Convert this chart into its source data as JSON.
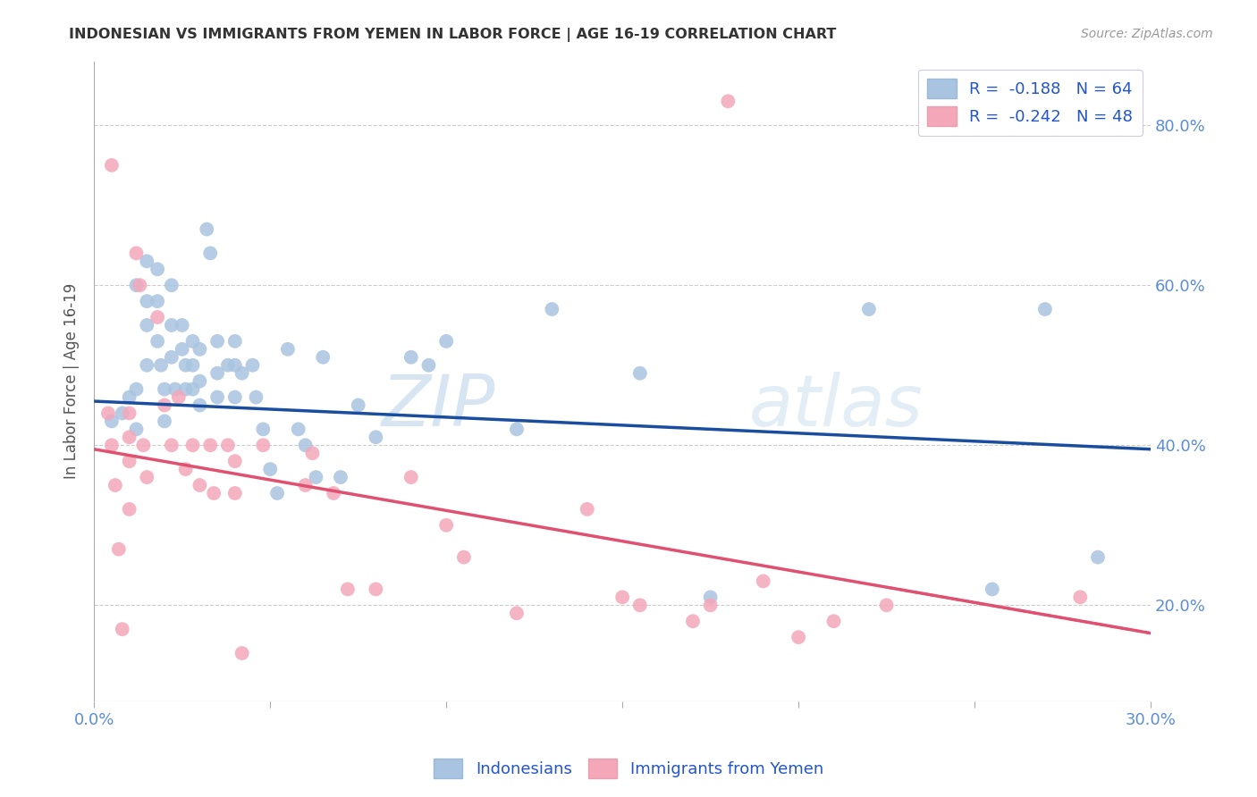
{
  "title": "INDONESIAN VS IMMIGRANTS FROM YEMEN IN LABOR FORCE | AGE 16-19 CORRELATION CHART",
  "source": "Source: ZipAtlas.com",
  "ylabel": "In Labor Force | Age 16-19",
  "xlim": [
    0.0,
    0.3
  ],
  "ylim": [
    0.08,
    0.88
  ],
  "xticks": [
    0.0,
    0.05,
    0.1,
    0.15,
    0.2,
    0.25,
    0.3
  ],
  "yticks": [
    0.2,
    0.4,
    0.6,
    0.8
  ],
  "ytick_labels": [
    "20.0%",
    "40.0%",
    "60.0%",
    "80.0%"
  ],
  "blue_R": -0.188,
  "blue_N": 64,
  "pink_R": -0.242,
  "pink_N": 48,
  "blue_color": "#a8c4e0",
  "pink_color": "#f4a7b9",
  "blue_line_color": "#1a4d9e",
  "pink_line_color": "#e05070",
  "watermark_zip": "ZIP",
  "watermark_atlas": "atlas",
  "blue_scatter_x": [
    0.005,
    0.008,
    0.01,
    0.012,
    0.012,
    0.012,
    0.015,
    0.015,
    0.015,
    0.015,
    0.018,
    0.018,
    0.018,
    0.019,
    0.02,
    0.02,
    0.022,
    0.022,
    0.022,
    0.023,
    0.025,
    0.025,
    0.026,
    0.026,
    0.028,
    0.028,
    0.028,
    0.03,
    0.03,
    0.03,
    0.032,
    0.033,
    0.035,
    0.035,
    0.035,
    0.038,
    0.04,
    0.04,
    0.04,
    0.042,
    0.045,
    0.046,
    0.048,
    0.05,
    0.052,
    0.055,
    0.058,
    0.06,
    0.063,
    0.065,
    0.07,
    0.075,
    0.08,
    0.09,
    0.095,
    0.1,
    0.12,
    0.13,
    0.155,
    0.175,
    0.22,
    0.255,
    0.27,
    0.285
  ],
  "blue_scatter_y": [
    0.43,
    0.44,
    0.46,
    0.42,
    0.47,
    0.6,
    0.63,
    0.58,
    0.55,
    0.5,
    0.62,
    0.58,
    0.53,
    0.5,
    0.47,
    0.43,
    0.6,
    0.55,
    0.51,
    0.47,
    0.55,
    0.52,
    0.5,
    0.47,
    0.53,
    0.5,
    0.47,
    0.52,
    0.48,
    0.45,
    0.67,
    0.64,
    0.53,
    0.49,
    0.46,
    0.5,
    0.53,
    0.5,
    0.46,
    0.49,
    0.5,
    0.46,
    0.42,
    0.37,
    0.34,
    0.52,
    0.42,
    0.4,
    0.36,
    0.51,
    0.36,
    0.45,
    0.41,
    0.51,
    0.5,
    0.53,
    0.42,
    0.57,
    0.49,
    0.21,
    0.57,
    0.22,
    0.57,
    0.26
  ],
  "pink_scatter_x": [
    0.004,
    0.005,
    0.005,
    0.006,
    0.007,
    0.008,
    0.01,
    0.01,
    0.01,
    0.01,
    0.012,
    0.013,
    0.014,
    0.015,
    0.018,
    0.02,
    0.022,
    0.024,
    0.026,
    0.028,
    0.03,
    0.033,
    0.034,
    0.038,
    0.04,
    0.04,
    0.042,
    0.048,
    0.06,
    0.062,
    0.068,
    0.072,
    0.08,
    0.09,
    0.1,
    0.105,
    0.12,
    0.14,
    0.15,
    0.155,
    0.17,
    0.175,
    0.18,
    0.19,
    0.2,
    0.21,
    0.225,
    0.28
  ],
  "pink_scatter_y": [
    0.44,
    0.75,
    0.4,
    0.35,
    0.27,
    0.17,
    0.44,
    0.41,
    0.38,
    0.32,
    0.64,
    0.6,
    0.4,
    0.36,
    0.56,
    0.45,
    0.4,
    0.46,
    0.37,
    0.4,
    0.35,
    0.4,
    0.34,
    0.4,
    0.38,
    0.34,
    0.14,
    0.4,
    0.35,
    0.39,
    0.34,
    0.22,
    0.22,
    0.36,
    0.3,
    0.26,
    0.19,
    0.32,
    0.21,
    0.2,
    0.18,
    0.2,
    0.83,
    0.23,
    0.16,
    0.18,
    0.2,
    0.21
  ],
  "blue_trend_x0": 0.0,
  "blue_trend_x1": 0.3,
  "blue_trend_y0": 0.455,
  "blue_trend_y1": 0.395,
  "pink_trend_x0": 0.0,
  "pink_trend_x1": 0.3,
  "pink_trend_y0": 0.395,
  "pink_trend_y1": 0.165
}
